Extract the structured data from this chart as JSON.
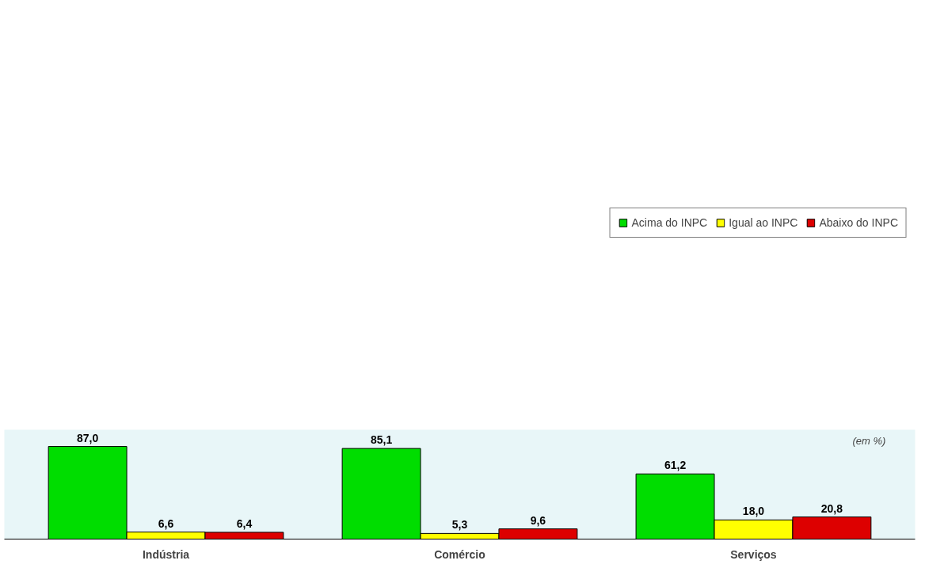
{
  "chart_data": {
    "type": "bar",
    "categories": [
      "Indústria",
      "Comércio",
      "Serviços"
    ],
    "series": [
      {
        "name": "Acima do INPC",
        "color": "#00dd00",
        "values": [
          87.0,
          85.1,
          61.2
        ],
        "value_labels": [
          "87,0",
          "85,1",
          "61,2"
        ]
      },
      {
        "name": "Igual ao INPC",
        "color": "#ffff00",
        "values": [
          6.6,
          5.3,
          18.0
        ],
        "value_labels": [
          "6,6",
          "5,3",
          "18,0"
        ]
      },
      {
        "name": "Abaixo do INPC",
        "color": "#dd0000",
        "values": [
          6.4,
          9.6,
          20.8
        ],
        "value_labels": [
          "6,4",
          "9,6",
          "20,8"
        ]
      }
    ],
    "legend": "top",
    "annotations": [
      "(em %)"
    ]
  }
}
